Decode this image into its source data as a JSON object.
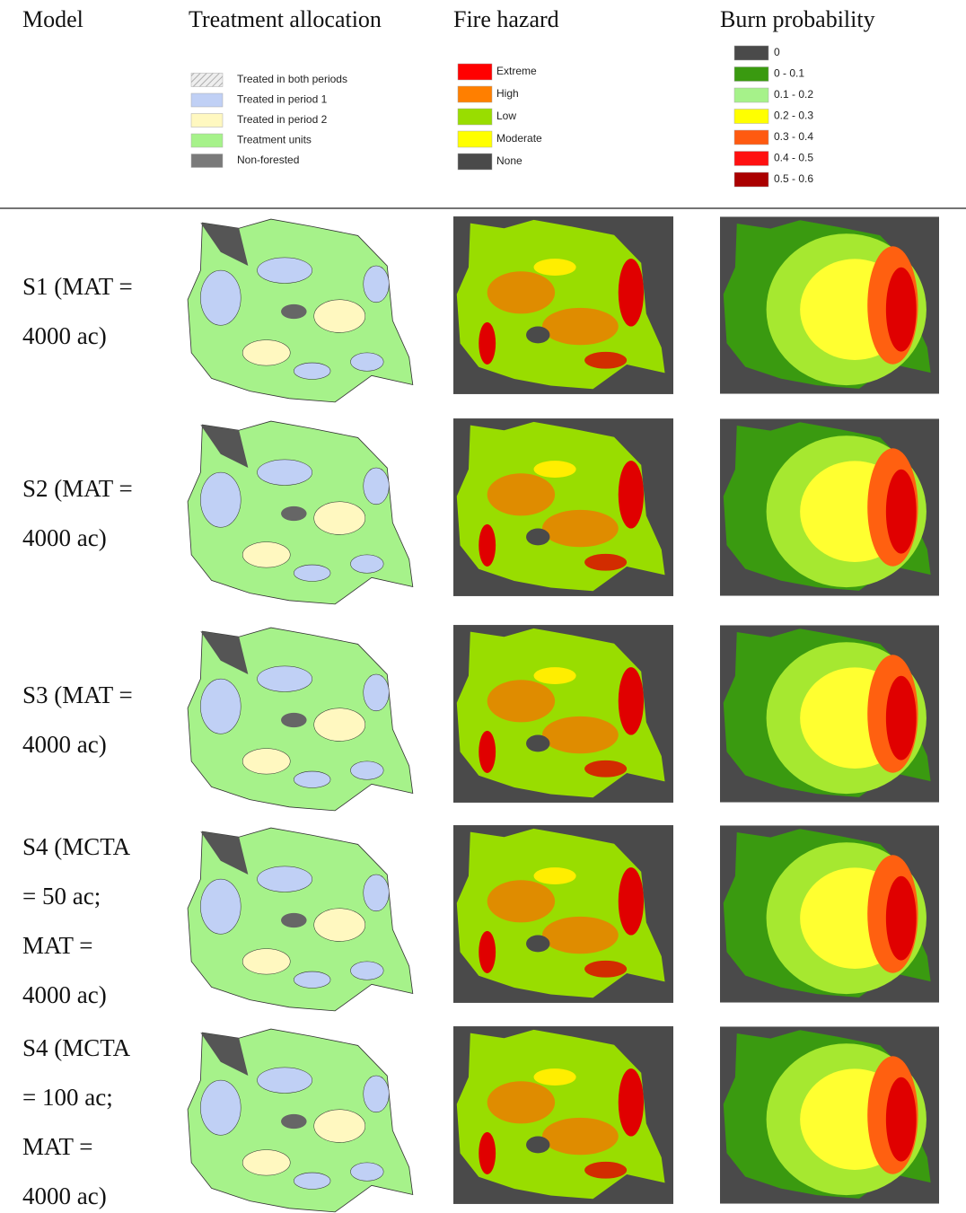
{
  "header": {
    "columns": [
      "Model",
      "Treatment allocation",
      "Fire hazard",
      "Burn probability"
    ]
  },
  "legends": {
    "treatment": [
      "Treated in both periods",
      "Treated in period 1",
      "Treated in period 2",
      "Treatment units",
      "Non-forested"
    ],
    "fire_hazard": [
      "Extreme",
      "High",
      "Low",
      "Moderate",
      "None"
    ],
    "burn_probability": [
      "0",
      "0 - 0.1",
      "0.1 - 0.2",
      "0.2 - 0.3",
      "0.3 - 0.4",
      "0.4 - 0.5",
      "0.5 - 0.6"
    ]
  },
  "rows": [
    {
      "model": [
        "S1 (MAT =",
        "4000 ac)"
      ]
    },
    {
      "model": [
        "S2 (MAT =",
        "4000 ac)"
      ]
    },
    {
      "model": [
        "S3 (MAT =",
        "4000 ac)"
      ]
    },
    {
      "model": [
        "S4 (MCTA",
        "= 50 ac;",
        "MAT =",
        "4000 ac)"
      ]
    },
    {
      "model": [
        "S4 (MCTA",
        "= 100 ac;",
        "MAT =",
        "4000 ac)"
      ]
    }
  ]
}
